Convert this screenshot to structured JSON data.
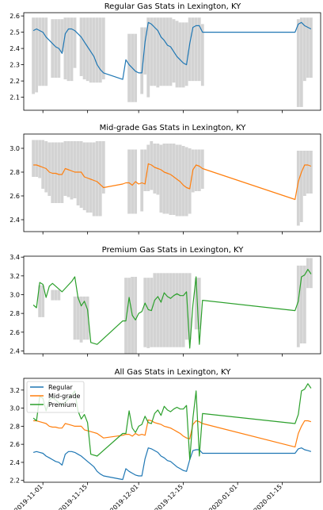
{
  "figure": {
    "background": "#ffffff",
    "colors": {
      "regular": "#1f77b4",
      "midgrade": "#ff7f0e",
      "premium": "#2ca02c",
      "range_bar": "#d3d3d3"
    },
    "x_tick_labels": [
      "2019-11-01",
      "2019-11-15",
      "2019-12-01",
      "2019-12-15",
      "2020-01-01",
      "2020-01-15"
    ]
  },
  "chart_data": [
    {
      "type": "line",
      "title": "Regular Gas Stats in Lexington, KY",
      "x_range": [
        "2019-10-26",
        "2020-01-27"
      ],
      "ylim": [
        2.02,
        2.62
      ],
      "yticks": [
        2.1,
        2.2,
        2.3,
        2.4,
        2.5,
        2.6
      ],
      "ytick_labels": [
        "2.1",
        "2.2",
        "2.3",
        "2.4",
        "2.5",
        "2.6"
      ],
      "series": [
        {
          "key": "regular",
          "color": "#1f77b4",
          "x": [
            "2019-10-29",
            "2019-10-30",
            "2019-10-31",
            "2019-11-01",
            "2019-11-02",
            "2019-11-03",
            "2019-11-04",
            "2019-11-05",
            "2019-11-06",
            "2019-11-07",
            "2019-11-08",
            "2019-11-09",
            "2019-11-10",
            "2019-11-11",
            "2019-11-12",
            "2019-11-13",
            "2019-11-14",
            "2019-11-15",
            "2019-11-16",
            "2019-11-17",
            "2019-11-18",
            "2019-11-19",
            "2019-11-20",
            "2019-11-26",
            "2019-11-27",
            "2019-11-28",
            "2019-11-29",
            "2019-11-30",
            "2019-12-01",
            "2019-12-02",
            "2019-12-03",
            "2019-12-04",
            "2019-12-05",
            "2019-12-06",
            "2019-12-07",
            "2019-12-08",
            "2019-12-09",
            "2019-12-10",
            "2019-12-11",
            "2019-12-12",
            "2019-12-13",
            "2019-12-14",
            "2019-12-15",
            "2019-12-16",
            "2019-12-17",
            "2019-12-18",
            "2019-12-19",
            "2019-12-20",
            "2019-12-21",
            "2020-01-19",
            "2020-01-20",
            "2020-01-21",
            "2020-01-22",
            "2020-01-23",
            "2020-01-24"
          ],
          "values": [
            2.51,
            2.52,
            2.51,
            2.5,
            2.47,
            2.45,
            2.43,
            2.41,
            2.4,
            2.37,
            2.49,
            2.52,
            2.52,
            2.51,
            2.49,
            2.47,
            2.44,
            2.41,
            2.38,
            2.35,
            2.3,
            2.27,
            2.25,
            2.21,
            2.33,
            2.3,
            2.28,
            2.26,
            2.25,
            2.25,
            2.44,
            2.56,
            2.55,
            2.53,
            2.51,
            2.47,
            2.45,
            2.42,
            2.41,
            2.38,
            2.35,
            2.33,
            2.31,
            2.3,
            2.43,
            2.53,
            2.54,
            2.54,
            2.5,
            2.5,
            2.55,
            2.56,
            2.54,
            2.53,
            2.52
          ]
        }
      ],
      "range_bars": {
        "x": [
          "2019-10-29",
          "2019-10-30",
          "2019-10-31",
          "2019-11-01",
          "2019-11-02",
          "2019-11-04",
          "2019-11-05",
          "2019-11-06",
          "2019-11-07",
          "2019-11-08",
          "2019-11-09",
          "2019-11-10",
          "2019-11-11",
          "2019-11-13",
          "2019-11-14",
          "2019-11-15",
          "2019-11-16",
          "2019-11-17",
          "2019-11-18",
          "2019-11-19",
          "2019-11-20",
          "2019-11-28",
          "2019-11-29",
          "2019-11-30",
          "2019-12-02",
          "2019-12-03",
          "2019-12-04",
          "2019-12-05",
          "2019-12-06",
          "2019-12-07",
          "2019-12-08",
          "2019-12-09",
          "2019-12-10",
          "2019-12-11",
          "2019-12-12",
          "2019-12-13",
          "2019-12-14",
          "2019-12-15",
          "2019-12-16",
          "2019-12-17",
          "2019-12-18",
          "2019-12-19",
          "2019-12-20",
          "2019-12-21",
          "2020-01-20",
          "2020-01-21",
          "2020-01-22",
          "2020-01-23",
          "2020-01-24"
        ],
        "low": [
          2.12,
          2.13,
          2.17,
          2.17,
          2.17,
          2.22,
          2.22,
          2.22,
          2.38,
          2.21,
          2.2,
          2.2,
          2.28,
          2.23,
          2.21,
          2.2,
          2.19,
          2.19,
          2.19,
          2.19,
          2.21,
          2.07,
          2.07,
          2.07,
          2.12,
          2.24,
          2.1,
          2.17,
          2.17,
          2.16,
          2.17,
          2.17,
          2.17,
          2.17,
          2.19,
          2.16,
          2.16,
          2.16,
          2.17,
          2.2,
          2.2,
          2.2,
          2.2,
          2.17,
          2.04,
          2.04,
          2.2,
          2.22,
          2.22
        ],
        "high": [
          2.59,
          2.59,
          2.59,
          2.59,
          2.59,
          2.58,
          2.58,
          2.58,
          2.58,
          2.59,
          2.59,
          2.59,
          2.59,
          2.59,
          2.59,
          2.59,
          2.59,
          2.59,
          2.59,
          2.59,
          2.59,
          2.49,
          2.49,
          2.49,
          2.53,
          2.53,
          2.59,
          2.59,
          2.59,
          2.59,
          2.59,
          2.59,
          2.59,
          2.59,
          2.58,
          2.57,
          2.56,
          2.56,
          2.56,
          2.59,
          2.59,
          2.59,
          2.59,
          2.55,
          2.58,
          2.59,
          2.59,
          2.59,
          2.59
        ]
      }
    },
    {
      "type": "line",
      "title": "Mid-grade Gas Stats in Lexington, KY",
      "x_range": [
        "2019-10-26",
        "2020-01-27"
      ],
      "ylim": [
        2.3,
        3.12
      ],
      "yticks": [
        2.4,
        2.6,
        2.8,
        3.0
      ],
      "ytick_labels": [
        "2.4",
        "2.6",
        "2.8",
        "3.0"
      ],
      "series": [
        {
          "key": "midgrade",
          "color": "#ff7f0e",
          "x": [
            "2019-10-29",
            "2019-10-30",
            "2019-10-31",
            "2019-11-01",
            "2019-11-02",
            "2019-11-03",
            "2019-11-04",
            "2019-11-05",
            "2019-11-06",
            "2019-11-07",
            "2019-11-08",
            "2019-11-09",
            "2019-11-10",
            "2019-11-11",
            "2019-11-12",
            "2019-11-13",
            "2019-11-14",
            "2019-11-15",
            "2019-11-16",
            "2019-11-17",
            "2019-11-18",
            "2019-11-20",
            "2019-11-26",
            "2019-11-27",
            "2019-11-28",
            "2019-11-29",
            "2019-11-30",
            "2019-12-01",
            "2019-12-02",
            "2019-12-03",
            "2019-12-04",
            "2019-12-05",
            "2019-12-06",
            "2019-12-07",
            "2019-12-08",
            "2019-12-09",
            "2019-12-10",
            "2019-12-11",
            "2019-12-12",
            "2019-12-13",
            "2019-12-14",
            "2019-12-15",
            "2019-12-16",
            "2019-12-17",
            "2019-12-18",
            "2019-12-19",
            "2019-12-20",
            "2019-12-21",
            "2020-01-19",
            "2020-01-20",
            "2020-01-21",
            "2020-01-22",
            "2020-01-23",
            "2020-01-24"
          ],
          "values": [
            2.86,
            2.86,
            2.85,
            2.84,
            2.83,
            2.8,
            2.79,
            2.79,
            2.78,
            2.78,
            2.83,
            2.82,
            2.81,
            2.8,
            2.8,
            2.8,
            2.76,
            2.75,
            2.74,
            2.73,
            2.72,
            2.67,
            2.7,
            2.71,
            2.71,
            2.69,
            2.72,
            2.7,
            2.71,
            2.7,
            2.87,
            2.86,
            2.84,
            2.83,
            2.82,
            2.8,
            2.79,
            2.78,
            2.76,
            2.74,
            2.72,
            2.69,
            2.67,
            2.66,
            2.82,
            2.86,
            2.85,
            2.83,
            2.57,
            2.72,
            2.8,
            2.86,
            2.86,
            2.85
          ]
        }
      ],
      "range_bars": {
        "x": [
          "2019-10-29",
          "2019-10-30",
          "2019-10-31",
          "2019-11-01",
          "2019-11-02",
          "2019-11-03",
          "2019-11-04",
          "2019-11-05",
          "2019-11-06",
          "2019-11-07",
          "2019-11-08",
          "2019-11-09",
          "2019-11-10",
          "2019-11-11",
          "2019-11-12",
          "2019-11-13",
          "2019-11-14",
          "2019-11-15",
          "2019-11-16",
          "2019-11-17",
          "2019-11-18",
          "2019-11-19",
          "2019-11-20",
          "2019-11-28",
          "2019-11-29",
          "2019-11-30",
          "2019-12-02",
          "2019-12-03",
          "2019-12-04",
          "2019-12-05",
          "2019-12-06",
          "2019-12-07",
          "2019-12-08",
          "2019-12-09",
          "2019-12-10",
          "2019-12-11",
          "2019-12-12",
          "2019-12-13",
          "2019-12-14",
          "2019-12-15",
          "2019-12-16",
          "2019-12-17",
          "2019-12-18",
          "2019-12-19",
          "2019-12-20",
          "2019-12-21",
          "2020-01-20",
          "2020-01-21",
          "2020-01-22",
          "2020-01-23",
          "2020-01-24"
        ],
        "low": [
          2.76,
          2.76,
          2.75,
          2.66,
          2.63,
          2.6,
          2.54,
          2.54,
          2.54,
          2.54,
          2.6,
          2.59,
          2.57,
          2.58,
          2.52,
          2.5,
          2.48,
          2.46,
          2.46,
          2.43,
          2.43,
          2.43,
          2.62,
          2.45,
          2.45,
          2.45,
          2.47,
          2.64,
          2.64,
          2.65,
          2.62,
          2.61,
          2.46,
          2.45,
          2.45,
          2.44,
          2.44,
          2.43,
          2.43,
          2.43,
          2.43,
          2.45,
          2.63,
          2.64,
          2.64,
          2.66,
          2.35,
          2.38,
          2.6,
          2.62,
          2.62
        ],
        "high": [
          3.07,
          3.07,
          3.07,
          3.07,
          3.06,
          3.05,
          3.05,
          3.05,
          3.05,
          3.05,
          3.06,
          3.06,
          3.06,
          3.06,
          3.06,
          3.06,
          3.05,
          3.05,
          3.05,
          3.05,
          3.06,
          3.06,
          3.06,
          2.99,
          2.99,
          2.99,
          2.99,
          2.99,
          3.03,
          3.06,
          3.04,
          3.04,
          3.03,
          3.04,
          3.04,
          3.04,
          3.04,
          3.03,
          3.03,
          3.02,
          3.01,
          3.0,
          2.99,
          2.99,
          2.99,
          2.99,
          2.98,
          2.98,
          2.98,
          2.98,
          2.98
        ]
      }
    },
    {
      "type": "line",
      "title": "Premium Gas Stats in Lexington, KY",
      "x_range": [
        "2019-10-26",
        "2020-01-27"
      ],
      "ylim": [
        2.37,
        3.41
      ],
      "yticks": [
        2.4,
        2.6,
        2.8,
        3.0,
        3.2,
        3.4
      ],
      "ytick_labels": [
        "2.4",
        "2.6",
        "2.8",
        "3.0",
        "3.2",
        "3.4"
      ],
      "series": [
        {
          "key": "premium",
          "color": "#2ca02c",
          "x": [
            "2019-10-29",
            "2019-10-30",
            "2019-10-31",
            "2019-11-01",
            "2019-11-02",
            "2019-11-03",
            "2019-11-04",
            "2019-11-05",
            "2019-11-06",
            "2019-11-07",
            "2019-11-10",
            "2019-11-11",
            "2019-11-12",
            "2019-11-13",
            "2019-11-14",
            "2019-11-15",
            "2019-11-16",
            "2019-11-18",
            "2019-11-26",
            "2019-11-27",
            "2019-11-28",
            "2019-11-29",
            "2019-11-30",
            "2019-12-01",
            "2019-12-02",
            "2019-12-03",
            "2019-12-04",
            "2019-12-05",
            "2019-12-06",
            "2019-12-07",
            "2019-12-08",
            "2019-12-09",
            "2019-12-10",
            "2019-12-11",
            "2019-12-12",
            "2019-12-13",
            "2019-12-14",
            "2019-12-15",
            "2019-12-16",
            "2019-12-17",
            "2019-12-18",
            "2019-12-19",
            "2019-12-20",
            "2019-12-21",
            "2020-01-19",
            "2020-01-20",
            "2020-01-21",
            "2020-01-22",
            "2020-01-23",
            "2020-01-24"
          ],
          "values": [
            2.89,
            2.86,
            3.13,
            3.11,
            2.97,
            3.09,
            3.12,
            3.09,
            3.06,
            3.03,
            3.14,
            3.19,
            2.97,
            2.88,
            2.93,
            2.84,
            2.49,
            2.47,
            2.72,
            2.72,
            2.97,
            2.78,
            2.73,
            2.8,
            2.82,
            2.91,
            2.84,
            2.83,
            2.94,
            2.98,
            2.92,
            3.02,
            2.98,
            2.96,
            2.99,
            3.01,
            2.99,
            2.99,
            3.03,
            2.43,
            2.89,
            3.19,
            2.47,
            2.94,
            2.83,
            2.93,
            3.19,
            3.21,
            3.27,
            3.22
          ]
        }
      ],
      "range_bars": {
        "x": [
          "2019-10-31",
          "2019-11-01",
          "2019-11-04",
          "2019-11-05",
          "2019-11-06",
          "2019-11-11",
          "2019-11-12",
          "2019-11-13",
          "2019-11-14",
          "2019-11-15",
          "2019-11-27",
          "2019-11-28",
          "2019-11-29",
          "2019-11-30",
          "2019-12-03",
          "2019-12-04",
          "2019-12-05",
          "2019-12-06",
          "2019-12-07",
          "2019-12-08",
          "2019-12-09",
          "2019-12-10",
          "2019-12-11",
          "2019-12-12",
          "2019-12-13",
          "2019-12-14",
          "2019-12-15",
          "2019-12-16",
          "2019-12-17",
          "2019-12-19",
          "2019-12-20",
          "2020-01-20",
          "2020-01-21",
          "2020-01-22",
          "2020-01-23",
          "2020-01-24"
        ],
        "low": [
          2.76,
          2.76,
          2.94,
          2.94,
          2.94,
          2.52,
          2.52,
          2.49,
          2.52,
          2.52,
          2.37,
          2.37,
          2.37,
          2.37,
          2.44,
          2.43,
          2.44,
          2.44,
          2.44,
          2.44,
          2.44,
          2.44,
          2.44,
          2.44,
          2.44,
          2.44,
          2.44,
          2.52,
          2.52,
          2.63,
          2.63,
          2.44,
          2.48,
          2.48,
          3.07,
          3.07
        ],
        "high": [
          3.1,
          3.1,
          3.05,
          3.05,
          3.05,
          2.98,
          2.98,
          2.98,
          2.98,
          2.98,
          3.18,
          3.18,
          3.19,
          3.19,
          3.18,
          3.18,
          3.18,
          3.23,
          3.23,
          3.23,
          3.23,
          3.23,
          3.23,
          3.23,
          3.23,
          3.23,
          3.23,
          3.23,
          3.23,
          3.18,
          3.18,
          3.31,
          3.31,
          3.31,
          3.39,
          3.39
        ]
      }
    },
    {
      "type": "line",
      "title": "All Gas Stats in Lexington, KY",
      "x_range": [
        "2019-10-26",
        "2020-01-27"
      ],
      "ylim": [
        2.18,
        3.33
      ],
      "yticks": [
        2.2,
        2.4,
        2.6,
        2.8,
        3.0,
        3.2
      ],
      "ytick_labels": [
        "2.2",
        "2.4",
        "2.6",
        "2.8",
        "3.0",
        "3.2"
      ],
      "legend": {
        "position": "upper-left",
        "entries": [
          "Regular",
          "Mid-grade",
          "Premium"
        ]
      },
      "series": [
        {
          "name": "Regular",
          "ref": 0
        },
        {
          "name": "Mid-grade",
          "ref": 1
        },
        {
          "name": "Premium",
          "ref": 2
        }
      ]
    }
  ]
}
